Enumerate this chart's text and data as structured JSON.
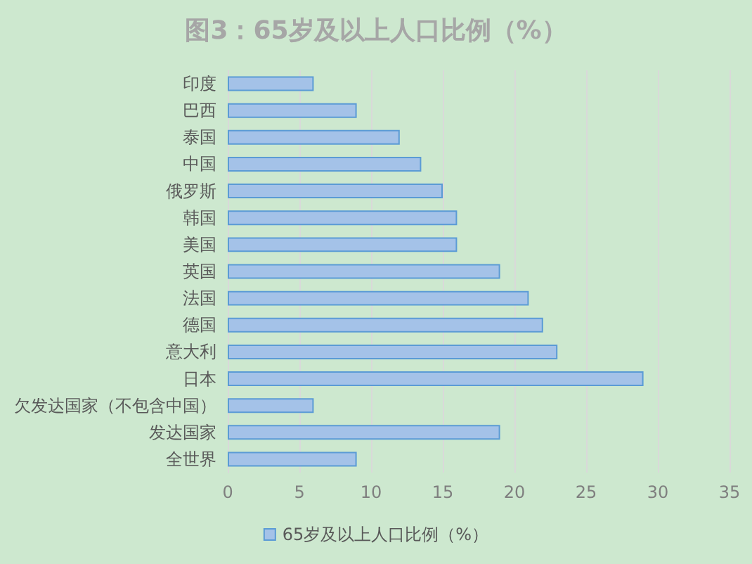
{
  "chart_data": {
    "type": "bar",
    "orientation": "horizontal",
    "title": "图3：65岁及以上人口比例（%）",
    "categories": [
      "印度",
      "巴西",
      "泰国",
      "中国",
      "俄罗斯",
      "韩国",
      "美国",
      "英国",
      "法国",
      "德国",
      "意大利",
      "日本",
      "欠发达国家（不包含中国）",
      "发达国家",
      "全世界"
    ],
    "series": [
      {
        "name": "65岁及以上人口比例（%）",
        "color": "#a4c2e8",
        "values": [
          6,
          9,
          12,
          13.5,
          15,
          16,
          16,
          19,
          21,
          22,
          23,
          29,
          6,
          19,
          9
        ]
      }
    ],
    "xlim": [
      0,
      35
    ],
    "xticks": [
      0,
      5,
      10,
      15,
      20,
      25,
      30,
      35
    ],
    "grid": "x",
    "legend": "bottom"
  }
}
